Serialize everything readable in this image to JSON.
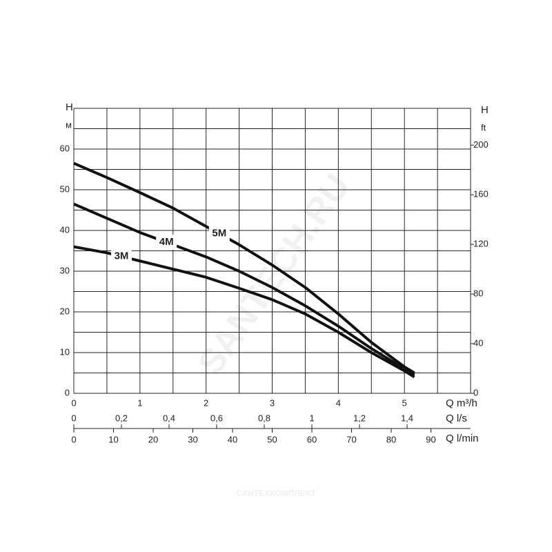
{
  "chart_data": {
    "type": "line",
    "y_axis_label": "H",
    "y_axis_unit": "м",
    "y2_axis_label": "H",
    "y2_axis_unit": "ft",
    "x_axis_label": "Q m³/h",
    "x2_axis_label": "Q l/s",
    "x3_axis_label": "Q l/min",
    "watermark": "SANTECH.RU",
    "footer": "САНТЕХКОМПЛЕКТ",
    "x": [
      0,
      0.5,
      1,
      1.5,
      2,
      2.5,
      3,
      3.5,
      4,
      4.5,
      5,
      5.15
    ],
    "xlim": [
      0,
      6
    ],
    "xticks": [
      0,
      1,
      2,
      3,
      4,
      5
    ],
    "xgrid": [
      0,
      0.5,
      1,
      1.5,
      2,
      2.5,
      3,
      3.5,
      4,
      4.5,
      5,
      5.5,
      6
    ],
    "ylim": [
      0,
      70
    ],
    "yticks": [
      0,
      10,
      20,
      30,
      40,
      50,
      60
    ],
    "ygrid": [
      0,
      5,
      10,
      15,
      20,
      25,
      30,
      35,
      40,
      45,
      50,
      55,
      60,
      65,
      70
    ],
    "y2lim": [
      0,
      229.66
    ],
    "y2ticks": [
      0,
      40,
      80,
      120,
      160,
      200
    ],
    "x2lim": [
      0,
      1.6667
    ],
    "x2ticks": [
      0,
      {
        "value": 0.2,
        "label": "0,2"
      },
      {
        "value": 0.4,
        "label": "0,4"
      },
      {
        "value": 0.6,
        "label": "0,6"
      },
      {
        "value": 0.8,
        "label": "0,8"
      },
      1,
      {
        "value": 1.2,
        "label": "1,2"
      },
      {
        "value": 1.4,
        "label": "1,4"
      }
    ],
    "x3lim": [
      0,
      100
    ],
    "x3ticks": [
      0,
      10,
      20,
      30,
      40,
      50,
      60,
      70,
      80,
      90
    ],
    "grid": true,
    "series": [
      {
        "name": "5M",
        "color": "#111111",
        "values": [
          56.5,
          53,
          49.3,
          45.5,
          41,
          36.5,
          31.5,
          26,
          19.5,
          12.5,
          6.5,
          5
        ]
      },
      {
        "name": "4M",
        "color": "#111111",
        "values": [
          46.5,
          43,
          39.5,
          36.5,
          33.5,
          30,
          26,
          21.5,
          16.5,
          11,
          6,
          4.5
        ]
      },
      {
        "name": "3M",
        "color": "#111111",
        "values": [
          36,
          34.5,
          32.5,
          30.5,
          28.5,
          25.8,
          23,
          19.5,
          15,
          10,
          5.5,
          4
        ]
      }
    ]
  }
}
